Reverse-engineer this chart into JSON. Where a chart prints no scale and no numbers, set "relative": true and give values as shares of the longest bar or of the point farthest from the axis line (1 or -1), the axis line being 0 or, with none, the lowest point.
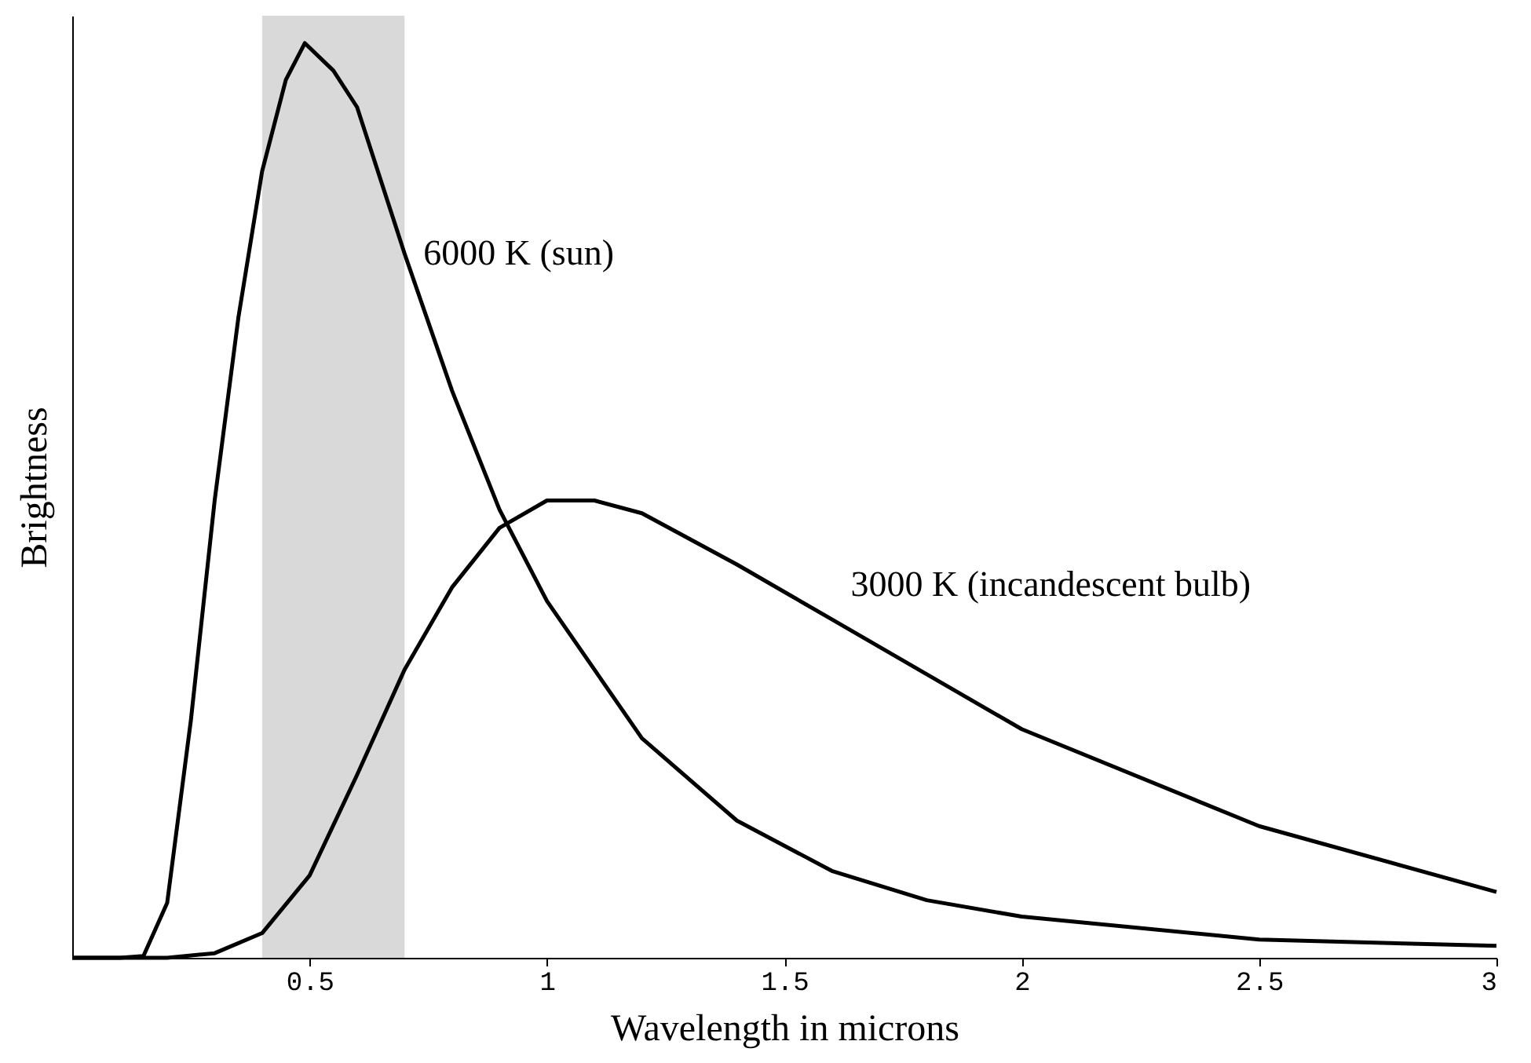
{
  "chart_data": {
    "type": "line",
    "relative": true,
    "xlabel": "Wavelength in microns",
    "ylabel": "Brightness",
    "xlim": [
      0,
      3
    ],
    "xticks": [
      0.5,
      1,
      1.5,
      2,
      2.5,
      3
    ],
    "grid": false,
    "marker": "none",
    "line_style": "solid",
    "bands": [
      {
        "axis": "x",
        "from": 0.4,
        "to": 0.7,
        "color": "#d9d9d9"
      }
    ],
    "series": [
      {
        "name": "6000 K (sun)",
        "color": "#000000",
        "x": [
          0,
          0.1,
          0.15,
          0.2,
          0.25,
          0.3,
          0.35,
          0.4,
          0.45,
          0.49,
          0.55,
          0.6,
          0.7,
          0.8,
          0.9,
          1.0,
          1.2,
          1.4,
          1.6,
          1.8,
          2.0,
          2.5,
          3.0
        ],
        "values": [
          0,
          0,
          0.002,
          0.06,
          0.26,
          0.5,
          0.7,
          0.86,
          0.96,
          1,
          0.97,
          0.93,
          0.77,
          0.62,
          0.49,
          0.39,
          0.24,
          0.15,
          0.095,
          0.063,
          0.045,
          0.02,
          0.013
        ]
      },
      {
        "name": "3000 K (incandescent bulb)",
        "color": "#000000",
        "x": [
          0,
          0.2,
          0.3,
          0.4,
          0.5,
          0.6,
          0.7,
          0.8,
          0.9,
          1.0,
          1.1,
          1.2,
          1.4,
          1.6,
          1.8,
          2.0,
          2.5,
          3.0
        ],
        "values": [
          0,
          0,
          0.005,
          0.027,
          0.09,
          0.2,
          0.315,
          0.405,
          0.47,
          0.5,
          0.5,
          0.486,
          0.43,
          0.37,
          0.31,
          0.25,
          0.144,
          0.072
        ]
      }
    ]
  }
}
